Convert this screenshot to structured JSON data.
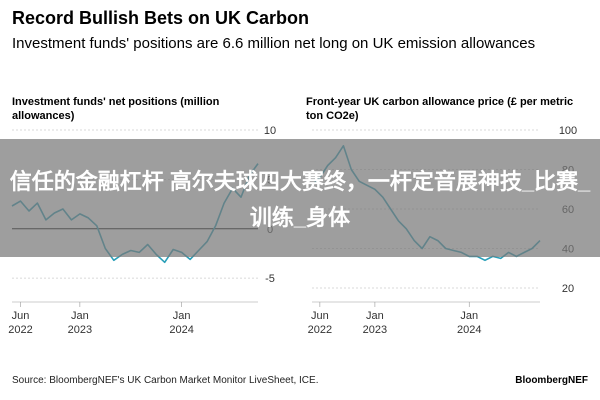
{
  "header": {
    "title": "Record Bullish Bets on UK Carbon",
    "subtitle": "Investment funds' positions are 6.6 million net long on UK emission allowances"
  },
  "footer": {
    "source": "Source: BloombergNEF's UK Carbon Market Monitor LiveSheet, ICE.",
    "brand": "BloombergNEF"
  },
  "overlay": {
    "text": "信任的金融杠杆 高尔夫球四大赛终，一杆定音展神技_比赛_训练_身体"
  },
  "colors": {
    "line": "#2a9fb8",
    "zero_line": "#000000",
    "grid": "#cccccc",
    "banner": "#787878"
  },
  "chart_data": [
    {
      "type": "line",
      "title": "Investment funds' net positions (million allowances)",
      "x_tick_labels": [
        [
          "Jun",
          "2022"
        ],
        [
          "Jan",
          "2023"
        ],
        [
          "Jan",
          "2024"
        ]
      ],
      "x_tick_dates": [
        "2022-06",
        "2023-01",
        "2024-01"
      ],
      "y_ticks": [
        10,
        5,
        0,
        -5
      ],
      "y_tick_labels": [
        "10",
        "5",
        "0",
        "-5"
      ],
      "ylim": [
        -6,
        10
      ],
      "xlim": [
        "2022-05",
        "2024-10"
      ],
      "series": [
        {
          "x": [
            "2022-05",
            "2022-06",
            "2022-07",
            "2022-08",
            "2022-09",
            "2022-10",
            "2022-11",
            "2022-12",
            "2023-01",
            "2023-02",
            "2023-03",
            "2023-04",
            "2023-05",
            "2023-06",
            "2023-07",
            "2023-08",
            "2023-09",
            "2023-10",
            "2023-11",
            "2023-12",
            "2024-01",
            "2024-02",
            "2024-03",
            "2024-04",
            "2024-05",
            "2024-06",
            "2024-07",
            "2024-08",
            "2024-09",
            "2024-10"
          ],
          "y": [
            2.3,
            2.8,
            1.8,
            2.6,
            0.9,
            1.6,
            2.0,
            0.9,
            1.5,
            1.1,
            0.3,
            -2.0,
            -3.2,
            -2.6,
            -2.2,
            -2.4,
            -1.6,
            -2.6,
            -3.4,
            -2.1,
            -2.4,
            -3.1,
            -2.2,
            -1.3,
            0.3,
            2.6,
            4.1,
            3.2,
            5.4,
            6.6
          ]
        }
      ]
    },
    {
      "type": "line",
      "title": "Front-year UK carbon allowance price (£ per metric ton CO2e)",
      "x_tick_labels": [
        [
          "Jun",
          "2022"
        ],
        [
          "Jan",
          "2023"
        ],
        [
          "Jan",
          "2024"
        ]
      ],
      "x_tick_dates": [
        "2022-06",
        "2023-01",
        "2024-01"
      ],
      "y_ticks": [
        100,
        80,
        60,
        40,
        20
      ],
      "y_tick_labels": [
        "100",
        "80",
        "60",
        "40",
        "20"
      ],
      "ylim": [
        20,
        100
      ],
      "xlim": [
        "2022-05",
        "2024-10"
      ],
      "series": [
        {
          "x": [
            "2022-05",
            "2022-06",
            "2022-07",
            "2022-08",
            "2022-09",
            "2022-10",
            "2022-11",
            "2022-12",
            "2023-01",
            "2023-02",
            "2023-03",
            "2023-04",
            "2023-05",
            "2023-06",
            "2023-07",
            "2023-08",
            "2023-09",
            "2023-10",
            "2023-11",
            "2023-12",
            "2024-01",
            "2024-02",
            "2024-03",
            "2024-04",
            "2024-05",
            "2024-06",
            "2024-07",
            "2024-08",
            "2024-09",
            "2024-10"
          ],
          "y": [
            72,
            76,
            82,
            86,
            92,
            80,
            74,
            72,
            70,
            66,
            60,
            54,
            50,
            44,
            40,
            46,
            44,
            40,
            39,
            38,
            36,
            36,
            34,
            36,
            35,
            38,
            36,
            38,
            40,
            44
          ]
        }
      ]
    }
  ]
}
